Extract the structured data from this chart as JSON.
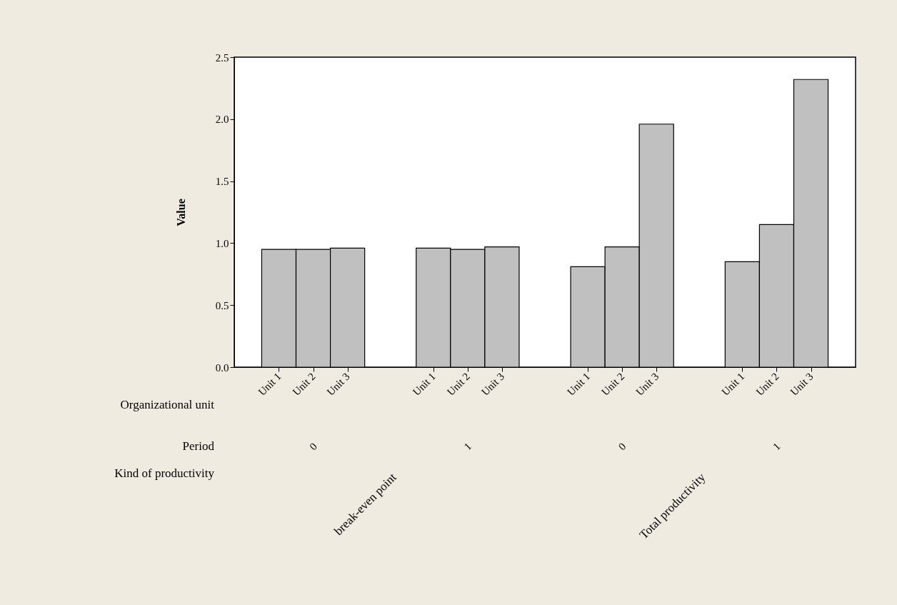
{
  "chart_data": {
    "type": "bar",
    "ylabel": "Value",
    "categories": [
      "Unit 1",
      "Unit 2",
      "Unit 3",
      "Unit 1",
      "Unit 2",
      "Unit 3",
      "Unit 1",
      "Unit 2",
      "Unit 3",
      "Unit 1",
      "Unit 2",
      "Unit 3"
    ],
    "values": [
      0.95,
      0.95,
      0.96,
      0.96,
      0.95,
      0.97,
      0.81,
      0.97,
      1.96,
      0.85,
      1.15,
      2.32
    ],
    "color": "#c0c0c0",
    "ylim": [
      0,
      2.5
    ],
    "yticks": [
      {
        "value": 0,
        "label": "0.0"
      },
      {
        "value": 0.5,
        "label": "0.5"
      },
      {
        "value": 1,
        "label": "1.0"
      },
      {
        "value": 1.5,
        "label": "1.5"
      },
      {
        "value": 2,
        "label": "2.0"
      },
      {
        "value": 2.5,
        "label": "2.5"
      }
    ],
    "annotations": [
      "Organizational unit",
      "Period",
      "Kind of productivity",
      "0",
      "1",
      "0",
      "1",
      "break-even point",
      "Total productivity"
    ],
    "grid": false
  }
}
